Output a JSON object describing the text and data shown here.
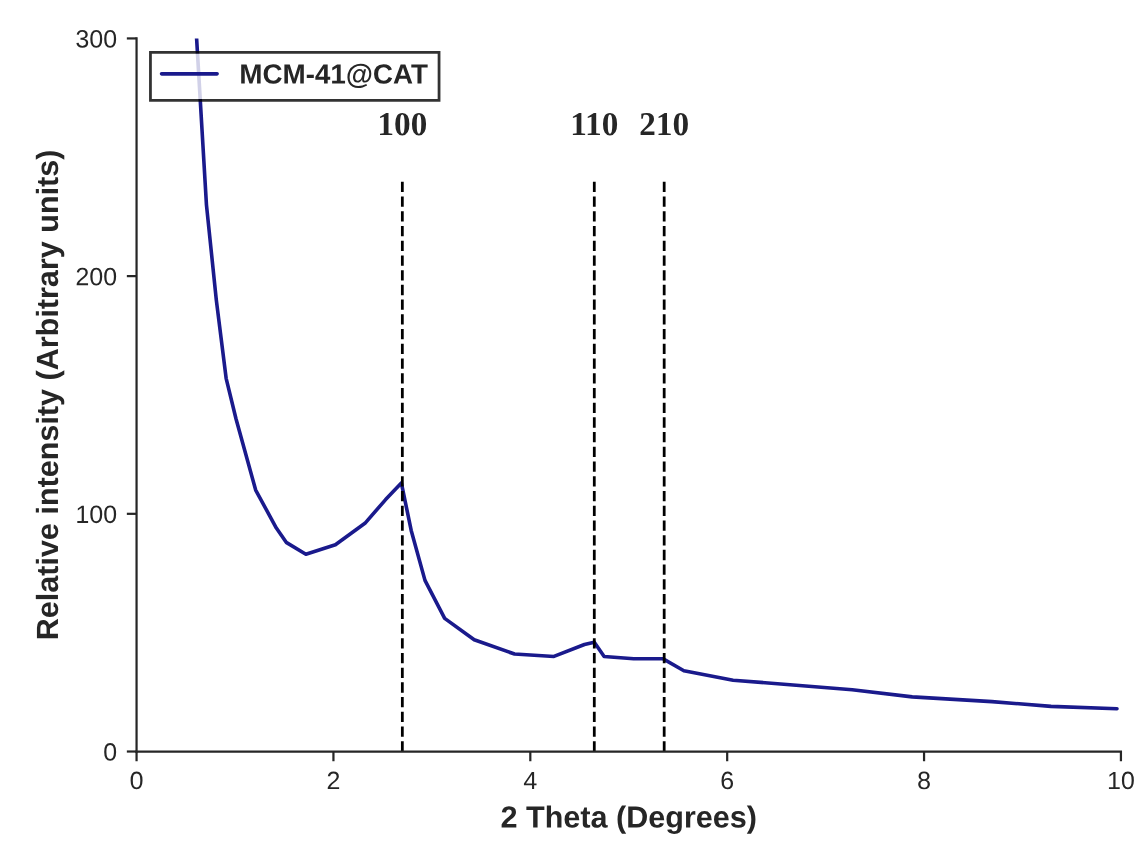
{
  "chart_data": {
    "type": "line",
    "xlabel": "2 Theta (Degrees)",
    "ylabel": "Relative intensity (Arbitrary units)",
    "x": [
      0.61,
      0.71,
      0.81,
      0.91,
      1.01,
      1.21,
      1.42,
      1.52,
      1.72,
      2.02,
      2.32,
      2.53,
      2.69,
      2.79,
      2.93,
      3.13,
      3.43,
      3.84,
      4.24,
      4.55,
      4.65,
      4.75,
      5.05,
      5.35,
      5.56,
      6.06,
      6.67,
      7.27,
      7.88,
      8.69,
      9.29,
      9.96
    ],
    "series": [
      {
        "name": "MCM-41@CAT",
        "color": "#1a1a8c",
        "values": [
          300,
          230,
          190,
          157,
          140,
          110,
          94,
          88,
          83,
          87,
          96,
          106,
          113,
          93,
          72,
          56,
          47,
          41,
          40,
          45,
          46,
          40,
          39,
          39,
          34,
          30,
          28,
          26,
          23,
          21,
          19,
          18
        ]
      }
    ],
    "xlim": [
      0,
      10
    ],
    "ylim": [
      0,
      300
    ],
    "xticks": [
      0,
      2,
      4,
      6,
      8,
      10
    ],
    "yticks": [
      0,
      100,
      200,
      300
    ],
    "ref_lines": [
      {
        "axis": "x",
        "value": 2.7,
        "color": "#000000",
        "line_style": "dashed"
      },
      {
        "axis": "x",
        "value": 4.65,
        "color": "#000000",
        "line_style": "dashed"
      },
      {
        "axis": "x",
        "value": 5.36,
        "color": "#000000",
        "line_style": "dashed"
      }
    ],
    "annotations": [
      {
        "text": "100",
        "x": 2.7,
        "y": 240
      },
      {
        "text": "110",
        "x": 4.65,
        "y": 240
      },
      {
        "text": "210",
        "x": 5.36,
        "y": 240
      }
    ],
    "legend": "top left",
    "grid": false
  }
}
